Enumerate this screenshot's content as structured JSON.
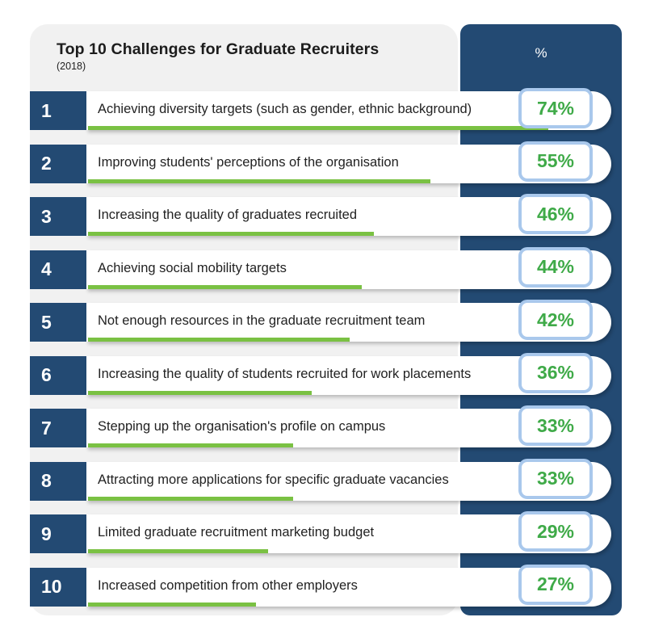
{
  "header": {
    "title": "Top 10 Challenges for Graduate Recruiters",
    "subtitle": "(2018)",
    "pct_column_label": "%"
  },
  "colors": {
    "navy": "#234a73",
    "green": "#7ac143",
    "percent_text": "#3faa48",
    "badge_border": "#a9c8ec"
  },
  "chart_data": {
    "type": "bar",
    "title": "Top 10 Challenges for Graduate Recruiters",
    "subtitle": "(2018)",
    "ylim": [
      0,
      100
    ],
    "ranks": [
      "1",
      "2",
      "3",
      "4",
      "5",
      "6",
      "7",
      "8",
      "9",
      "10"
    ],
    "categories": [
      "Achieving diversity targets (such as gender, ethnic background)",
      "Improving students' perceptions of the organisation",
      "Increasing the quality of graduates recruited",
      "Achieving social mobility targets",
      "Not enough resources in the graduate recruitment team",
      "Increasing the quality of students recruited for work placements",
      "Stepping up the organisation's profile on campus",
      "Attracting more applications for specific graduate vacancies",
      "Limited graduate recruitment marketing budget",
      "Increased competition from other employers"
    ],
    "values": [
      74,
      55,
      46,
      44,
      42,
      36,
      33,
      33,
      29,
      27
    ],
    "value_labels": [
      "74%",
      "55%",
      "46%",
      "44%",
      "42%",
      "36%",
      "33%",
      "33%",
      "29%",
      "27%"
    ]
  }
}
